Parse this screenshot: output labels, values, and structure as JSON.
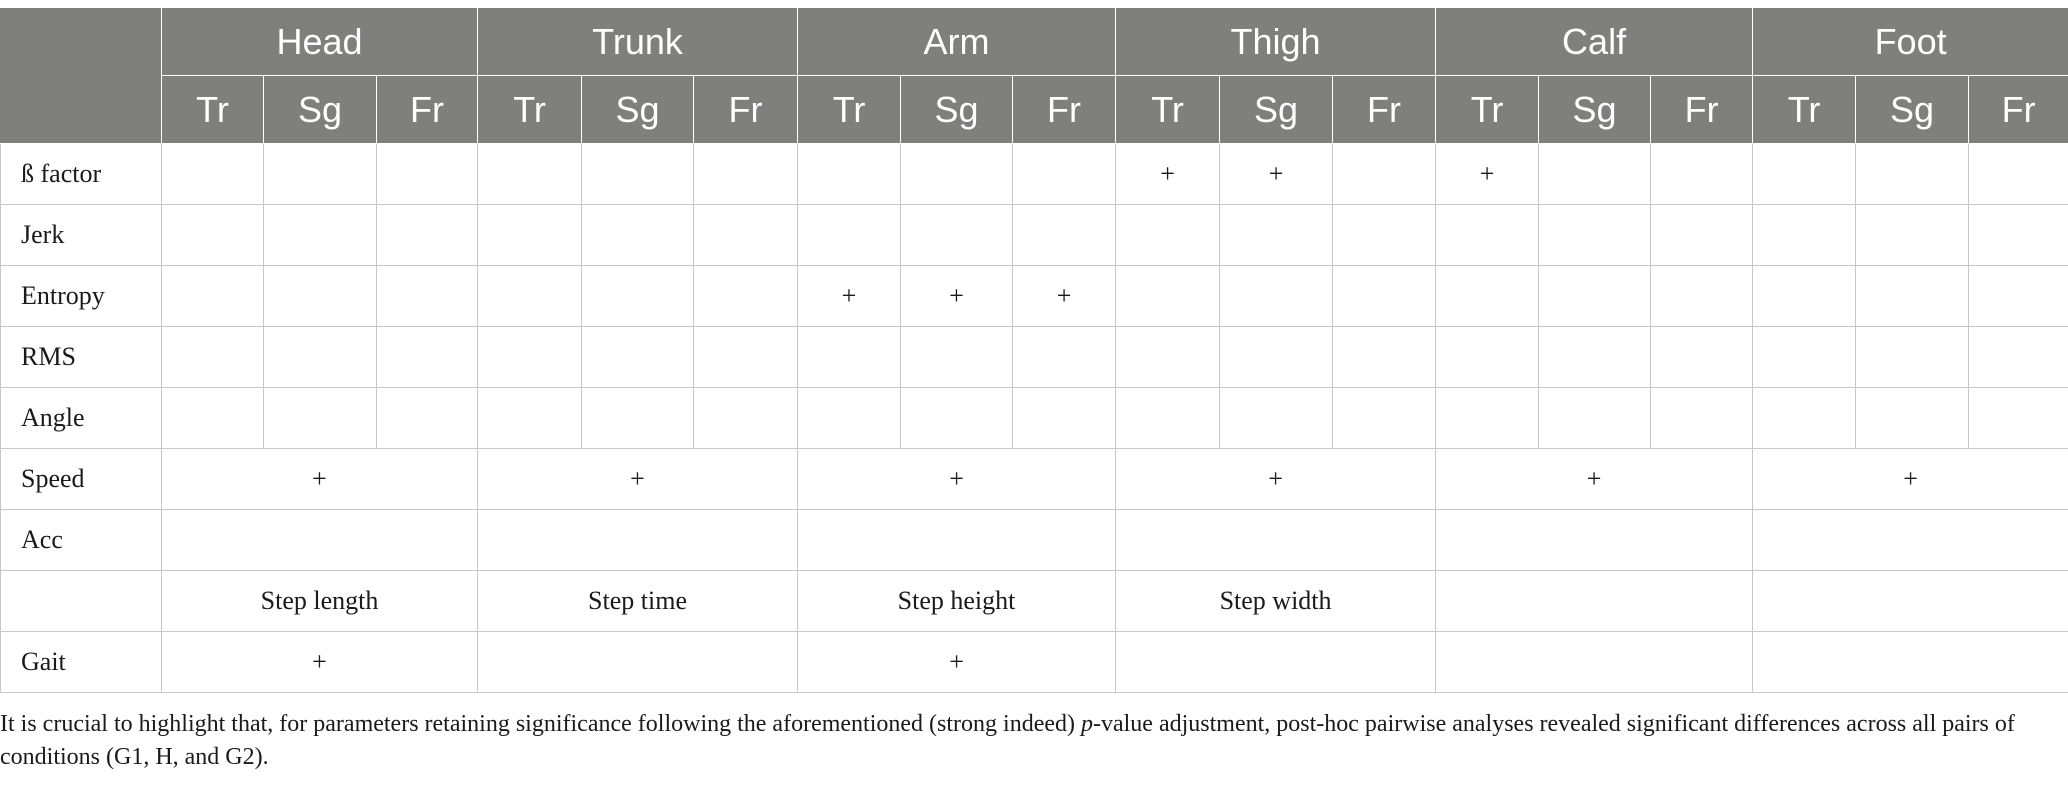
{
  "header": {
    "corner": "",
    "groups": [
      "Head",
      "Trunk",
      "Arm",
      "Thigh",
      "Calf",
      "Foot"
    ],
    "planes": [
      "Tr",
      "Sg",
      "Fr"
    ]
  },
  "rows": [
    {
      "label": "ß factor",
      "cells": [
        "",
        "",
        "",
        "",
        "",
        "",
        "",
        "",
        "",
        "+",
        "+",
        "",
        "+",
        "",
        "",
        "",
        "",
        ""
      ]
    },
    {
      "label": "Jerk",
      "cells": [
        "",
        "",
        "",
        "",
        "",
        "",
        "",
        "",
        "",
        "",
        "",
        "",
        "",
        "",
        "",
        "",
        "",
        ""
      ]
    },
    {
      "label": "Entropy",
      "cells": [
        "",
        "",
        "",
        "",
        "",
        "",
        "+",
        "+",
        "+",
        "",
        "",
        "",
        "",
        "",
        "",
        "",
        "",
        ""
      ]
    },
    {
      "label": "RMS",
      "cells": [
        "",
        "",
        "",
        "",
        "",
        "",
        "",
        "",
        "",
        "",
        "",
        "",
        "",
        "",
        "",
        "",
        "",
        ""
      ]
    },
    {
      "label": "Angle",
      "cells": [
        "",
        "",
        "",
        "",
        "",
        "",
        "",
        "",
        "",
        "",
        "",
        "",
        "",
        "",
        "",
        "",
        "",
        ""
      ]
    }
  ],
  "merged_rows": [
    {
      "label": "Speed",
      "cells": [
        "+",
        "+",
        "+",
        "+",
        "+",
        "+"
      ]
    },
    {
      "label": "Acc",
      "cells": [
        "",
        "",
        "",
        "",
        "",
        ""
      ]
    },
    {
      "label": "",
      "cells": [
        "Step length",
        "Step time",
        "Step height",
        "Step width",
        "",
        ""
      ]
    },
    {
      "label": "Gait",
      "cells": [
        "+",
        "",
        "+",
        "",
        "",
        ""
      ]
    }
  ],
  "footnote": {
    "before": "It is crucial to highlight that, for parameters retaining significance following the aforementioned (strong indeed) ",
    "italic": "p",
    "after": "-value adjustment, post-hoc pairwise analyses revealed significant differences across all pairs of conditions (G1, H, and G2)."
  }
}
